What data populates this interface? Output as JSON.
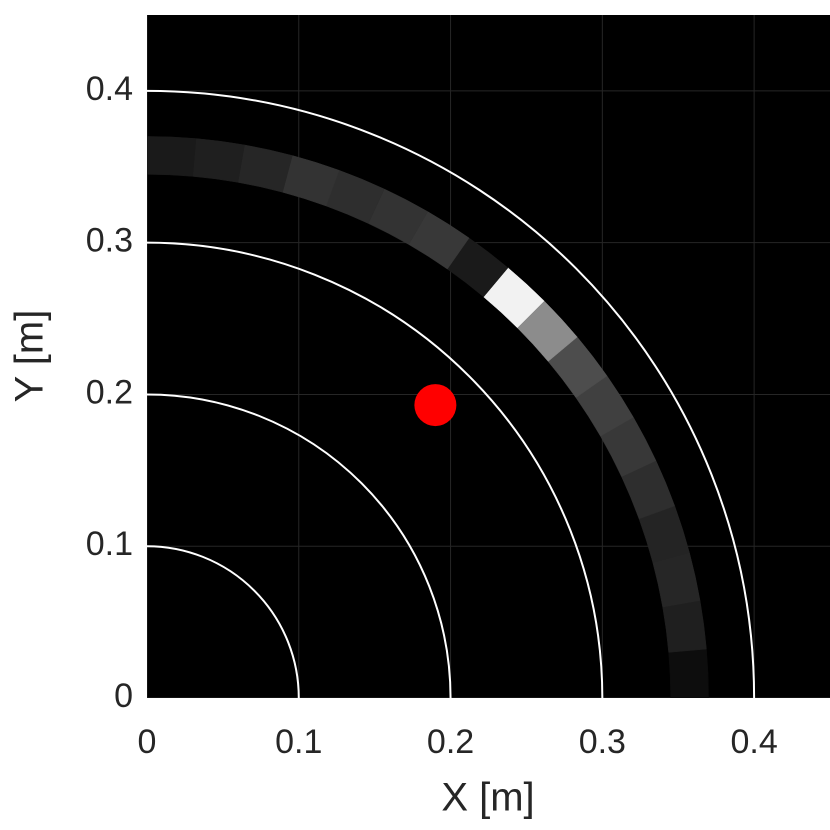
{
  "chart_data": {
    "type": "polar_band",
    "xlabel": "X [m]",
    "ylabel": "Y [m]",
    "xlim": [
      0,
      0.45
    ],
    "ylim": [
      0,
      0.45
    ],
    "xticks": [
      0,
      0.1,
      0.2,
      0.3,
      0.4
    ],
    "yticks": [
      0,
      0.1,
      0.2,
      0.3,
      0.4
    ],
    "grid": true,
    "circle_radii": [
      0.1,
      0.2,
      0.3,
      0.4
    ],
    "circle_color": "#ffffff",
    "band": {
      "r_inner": 0.345,
      "r_outer": 0.37,
      "angle_edges": [
        0,
        5,
        10,
        15,
        20,
        25,
        30,
        35,
        40,
        45,
        50,
        55,
        60,
        65,
        70,
        75,
        80,
        85,
        90
      ],
      "intensity": [
        0.05,
        0.12,
        0.15,
        0.14,
        0.18,
        0.22,
        0.25,
        0.3,
        0.55,
        0.95,
        0.1,
        0.22,
        0.2,
        0.18,
        0.2,
        0.15,
        0.12,
        0.1
      ]
    },
    "point": {
      "x": 0.19,
      "y": 0.193,
      "color": "#ff0000"
    }
  }
}
